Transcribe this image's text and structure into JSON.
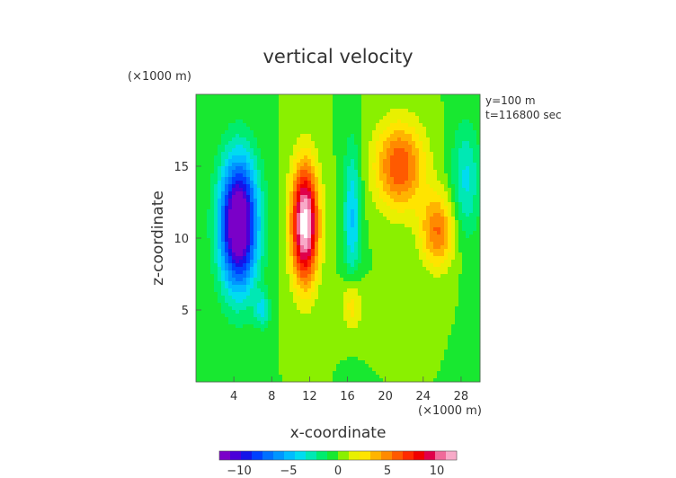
{
  "chart_data": {
    "type": "heatmap",
    "title": "vertical velocity",
    "xlabel": "x-coordinate",
    "ylabel": "z-coordinate",
    "x_unit": "(×1000 m)",
    "y_unit": "(×1000 m)",
    "annotations": [
      "y=100 m",
      "t=116800 sec"
    ],
    "xlim": [
      0,
      30
    ],
    "ylim": [
      0,
      20
    ],
    "x_ticks": [
      4,
      8,
      12,
      16,
      20,
      24,
      28
    ],
    "y_ticks": [
      5,
      10,
      15
    ],
    "colorbar": {
      "ticks": [
        -10,
        -5,
        0,
        5,
        10
      ],
      "range": [
        -12,
        12
      ],
      "colors": [
        "#7a00c8",
        "#4a00d8",
        "#1414e8",
        "#0040ff",
        "#0070ff",
        "#0096ff",
        "#00bcff",
        "#00dcf0",
        "#00e8b4",
        "#00ec6e",
        "#18e830",
        "#8af000",
        "#e8f000",
        "#ffe400",
        "#ffb400",
        "#ff8a00",
        "#ff5a00",
        "#ff2a00",
        "#f00000",
        "#e0004a",
        "#f06a9a",
        "#f8aac8"
      ]
    },
    "field_features": [
      {
        "name": "downdraft",
        "x": 4.5,
        "z": 11.0,
        "sx": 2.0,
        "sz": 4.5,
        "w": -14
      },
      {
        "name": "updraft-main",
        "x": 11.5,
        "z": 11.0,
        "sx": 1.4,
        "sz": 4.0,
        "w": 13
      },
      {
        "name": "updraft-upper-right",
        "x": 21.5,
        "z": 15.0,
        "sx": 2.6,
        "sz": 3.0,
        "w": 6.5
      },
      {
        "name": "updraft-lower-right",
        "x": 25.5,
        "z": 10.5,
        "sx": 1.8,
        "sz": 2.5,
        "w": 5.5
      },
      {
        "name": "downdraft-middle",
        "x": 16.5,
        "z": 11.5,
        "sx": 0.9,
        "sz": 5.0,
        "w": -4.5
      },
      {
        "name": "downdraft-right-edge",
        "x": 28.5,
        "z": 14.0,
        "sx": 1.5,
        "sz": 4.0,
        "w": -3.5
      },
      {
        "name": "updraft-low",
        "x": 16.5,
        "z": 5.5,
        "sx": 1.0,
        "sz": 2.0,
        "w": 3.5
      },
      {
        "name": "downdraft-low-left",
        "x": 7.0,
        "z": 5.0,
        "sx": 0.8,
        "sz": 1.2,
        "w": -3.5
      }
    ]
  }
}
